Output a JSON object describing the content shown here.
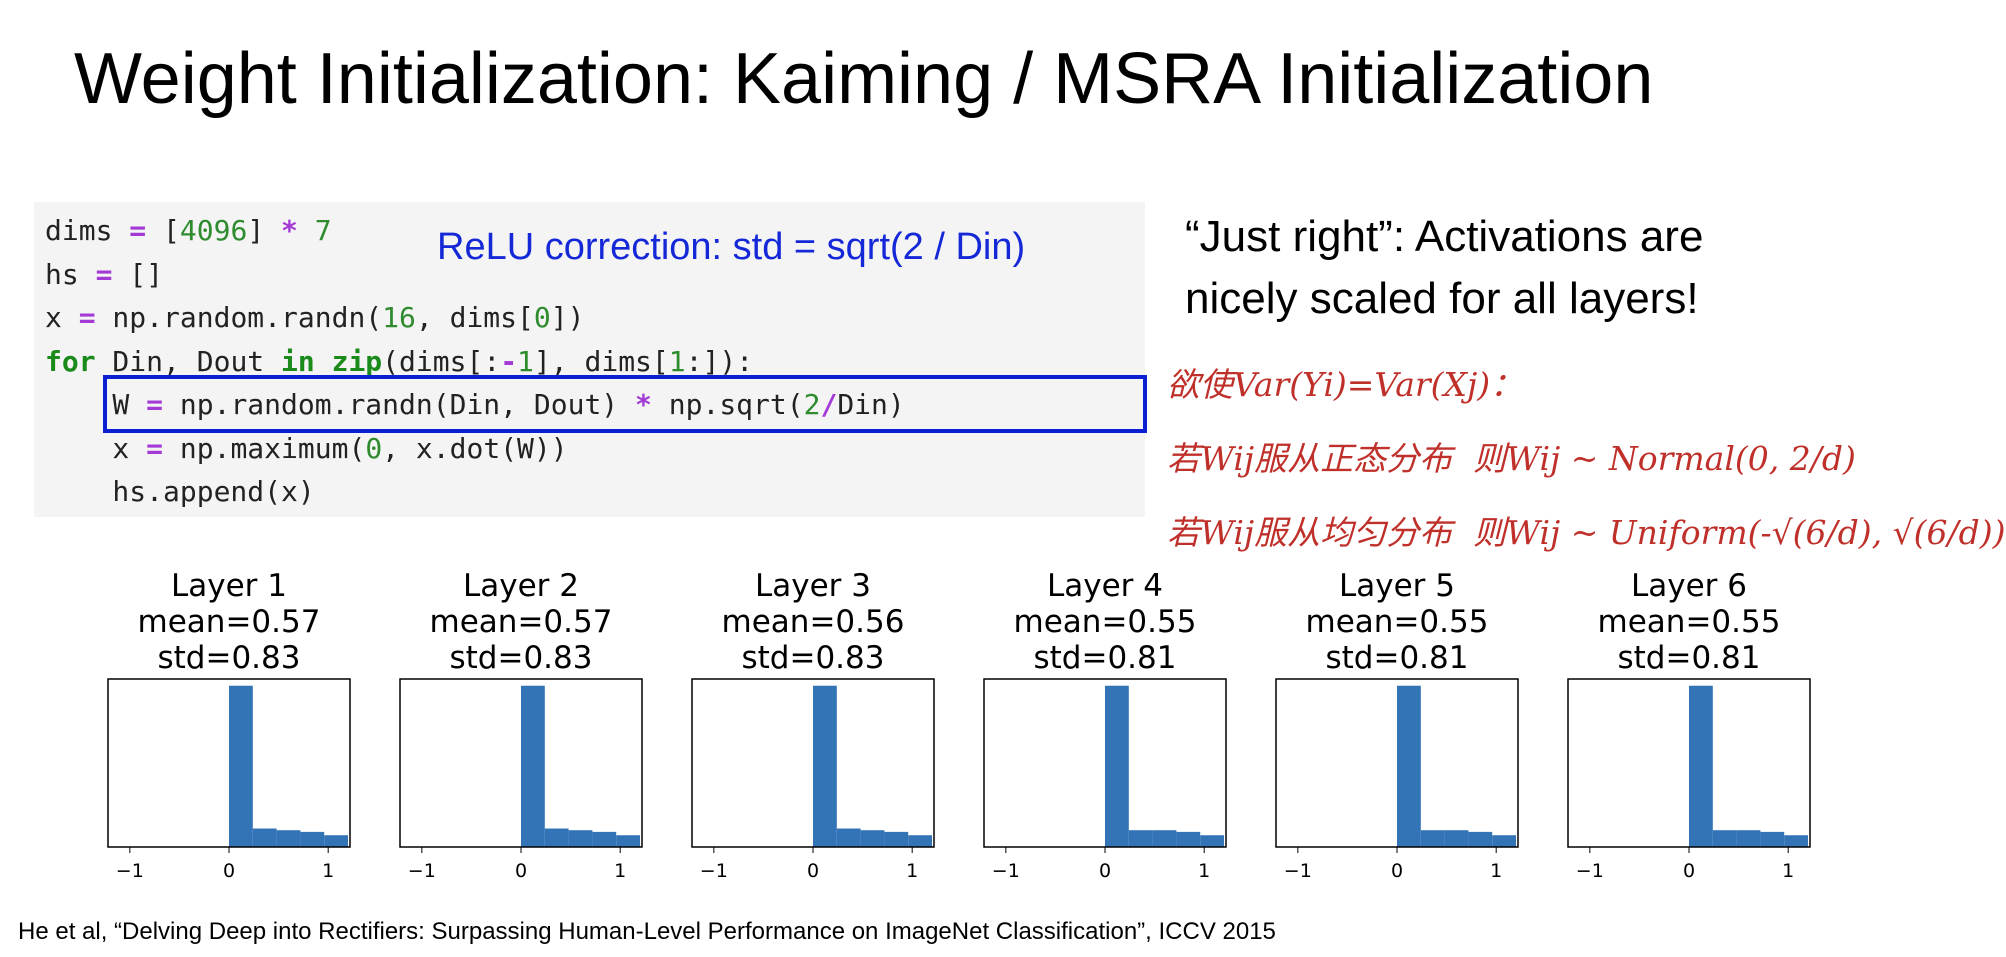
{
  "title": "Weight Initialization: Kaiming / MSRA Initialization",
  "code": {
    "lines": [
      "dims = [4096] * 7",
      "hs = []",
      "x = np.random.randn(16, dims[0])",
      "for Din, Dout in zip(dims[:-1], dims[1:]):",
      "    W = np.random.randn(Din, Dout) * np.sqrt(2/Din)",
      "    x = np.maximum(0, x.dot(W))",
      "    hs.append(x)"
    ],
    "annotation": "ReLU correction: std = sqrt(2 / Din)"
  },
  "commentary": [
    "“Just right”: Activations are",
    "nicely scaled for all layers!"
  ],
  "notes": [
    "欲使Var(Yi)=Var(Xj)：",
    "若Wij服从正态分布  则Wij ~ Normal(0, 2/d)",
    "若Wij服从均匀分布  则Wij ~ Uniform(-√(6/d), √(6/d))"
  ],
  "chart_data": [
    {
      "type": "histogram",
      "title": [
        "Layer 1",
        "mean=0.57",
        "std=0.83"
      ],
      "bins": [
        0,
        0.24,
        0.48,
        0.72,
        0.96,
        1.2
      ],
      "values": [
        0.96,
        0.11,
        0.1,
        0.09,
        0.07
      ],
      "color": "#3274b5",
      "xlim": [
        -1.22,
        1.22
      ],
      "xticks": [
        {
          "value": -1,
          "label": "−1"
        },
        0,
        1
      ],
      "ylim": [
        0,
        1
      ]
    },
    {
      "type": "histogram",
      "title": [
        "Layer 2",
        "mean=0.57",
        "std=0.83"
      ],
      "bins": [
        0,
        0.24,
        0.48,
        0.72,
        0.96,
        1.2
      ],
      "values": [
        0.96,
        0.11,
        0.1,
        0.09,
        0.07
      ],
      "color": "#3274b5",
      "xlim": [
        -1.22,
        1.22
      ],
      "xticks": [
        {
          "value": -1,
          "label": "−1"
        },
        0,
        1
      ],
      "ylim": [
        0,
        1
      ]
    },
    {
      "type": "histogram",
      "title": [
        "Layer 3",
        "mean=0.56",
        "std=0.83"
      ],
      "bins": [
        0,
        0.24,
        0.48,
        0.72,
        0.96,
        1.2
      ],
      "values": [
        0.96,
        0.11,
        0.1,
        0.09,
        0.07
      ],
      "color": "#3274b5",
      "xlim": [
        -1.22,
        1.22
      ],
      "xticks": [
        {
          "value": -1,
          "label": "−1"
        },
        0,
        1
      ],
      "ylim": [
        0,
        1
      ]
    },
    {
      "type": "histogram",
      "title": [
        "Layer 4",
        "mean=0.55",
        "std=0.81"
      ],
      "bins": [
        0,
        0.24,
        0.48,
        0.72,
        0.96,
        1.2
      ],
      "values": [
        0.96,
        0.1,
        0.1,
        0.09,
        0.07
      ],
      "color": "#3274b5",
      "xlim": [
        -1.22,
        1.22
      ],
      "xticks": [
        {
          "value": -1,
          "label": "−1"
        },
        0,
        1
      ],
      "ylim": [
        0,
        1
      ]
    },
    {
      "type": "histogram",
      "title": [
        "Layer 5",
        "mean=0.55",
        "std=0.81"
      ],
      "bins": [
        0,
        0.24,
        0.48,
        0.72,
        0.96,
        1.2
      ],
      "values": [
        0.96,
        0.1,
        0.1,
        0.09,
        0.07
      ],
      "color": "#3274b5",
      "xlim": [
        -1.22,
        1.22
      ],
      "xticks": [
        {
          "value": -1,
          "label": "−1"
        },
        0,
        1
      ],
      "ylim": [
        0,
        1
      ]
    },
    {
      "type": "histogram",
      "title": [
        "Layer 6",
        "mean=0.55",
        "std=0.81"
      ],
      "bins": [
        0,
        0.24,
        0.48,
        0.72,
        0.96,
        1.2
      ],
      "values": [
        0.96,
        0.1,
        0.1,
        0.09,
        0.07
      ],
      "color": "#3274b5",
      "xlim": [
        -1.22,
        1.22
      ],
      "xticks": [
        {
          "value": -1,
          "label": "−1"
        },
        0,
        1
      ],
      "ylim": [
        0,
        1
      ]
    }
  ],
  "citation": "He et al, “Delving Deep into Rectifiers: Surpassing Human-Level Performance on ImageNet Classification”, ICCV 2015"
}
